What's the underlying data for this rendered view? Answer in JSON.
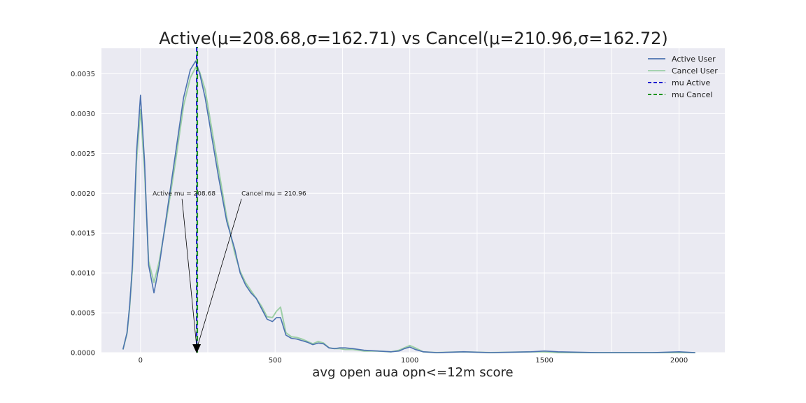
{
  "chart_data": {
    "type": "line",
    "title": "Active(μ=208.68,σ=162.71) vs Cancel(μ=210.96,σ=162.72)",
    "xlabel": "avg open aua opn<=12m score",
    "ylabel": "",
    "xlim": [
      -145,
      2170
    ],
    "ylim": [
      0,
      0.00382
    ],
    "xticks": [
      0,
      500,
      1000,
      1500,
      2000
    ],
    "yticks": [
      0.0,
      0.0005,
      0.001,
      0.0015,
      0.002,
      0.0025,
      0.003,
      0.0035
    ],
    "ytick_labels": [
      "0.0000",
      "0.0005",
      "0.0010",
      "0.0015",
      "0.0020",
      "0.0025",
      "0.0030",
      "0.0035"
    ],
    "grid": true,
    "legend_position": "top-right",
    "colors": {
      "background": "#eaeaf2",
      "grid": "#ffffff",
      "active": "#4c72b0",
      "cancel": "#9dcfa6",
      "mu_active": "#0000cc",
      "mu_cancel": "#008800"
    },
    "series": [
      {
        "name": "Active User",
        "x": [
          -65,
          -50,
          -40,
          -30,
          -15,
          0,
          15,
          30,
          50,
          70,
          100,
          130,
          160,
          185,
          205,
          220,
          240,
          260,
          290,
          320,
          350,
          370,
          390,
          410,
          430,
          450,
          470,
          490,
          505,
          520,
          540,
          560,
          580,
          600,
          620,
          640,
          660,
          680,
          700,
          720,
          740,
          760,
          790,
          830,
          880,
          930,
          960,
          980,
          1000,
          1020,
          1050,
          1100,
          1200,
          1300,
          1450,
          1500,
          1550,
          1700,
          1900,
          2000,
          2060
        ],
        "y": [
          4e-05,
          0.00025,
          0.0006,
          0.0011,
          0.0025,
          0.00323,
          0.0024,
          0.0011,
          0.00075,
          0.0011,
          0.0018,
          0.0025,
          0.0032,
          0.00355,
          0.00366,
          0.0035,
          0.0032,
          0.0028,
          0.0022,
          0.00165,
          0.0013,
          0.001,
          0.00085,
          0.00075,
          0.00068,
          0.00055,
          0.00042,
          0.00039,
          0.00044,
          0.00044,
          0.00022,
          0.00018,
          0.00017,
          0.00015,
          0.00013,
          0.0001,
          0.00012,
          0.00011,
          6e-05,
          5e-05,
          6e-05,
          6e-05,
          5e-05,
          3e-05,
          2e-05,
          1e-05,
          2e-05,
          5e-05,
          7e-05,
          4e-05,
          1e-05,
          0.0,
          1e-05,
          0.0,
          1e-05,
          2e-05,
          1e-05,
          0.0,
          0.0,
          1e-05,
          0.0
        ]
      },
      {
        "name": "Cancel User",
        "x": [
          -65,
          -50,
          -40,
          -30,
          -15,
          0,
          15,
          30,
          50,
          70,
          100,
          130,
          160,
          185,
          205,
          220,
          240,
          260,
          290,
          320,
          350,
          370,
          390,
          410,
          430,
          450,
          470,
          490,
          505,
          520,
          540,
          560,
          580,
          600,
          620,
          640,
          660,
          680,
          700,
          720,
          740,
          760,
          790,
          830,
          880,
          930,
          960,
          980,
          1000,
          1020,
          1050,
          1100,
          1200,
          1300,
          1450,
          1500,
          1550,
          1700,
          1900,
          2000,
          2060
        ],
        "y": [
          4e-05,
          0.00024,
          0.00058,
          0.00105,
          0.0024,
          0.00305,
          0.0023,
          0.00115,
          0.00088,
          0.00115,
          0.00175,
          0.0024,
          0.0031,
          0.00345,
          0.00358,
          0.00352,
          0.0033,
          0.0029,
          0.0023,
          0.0017,
          0.00125,
          0.00102,
          0.00088,
          0.00078,
          0.00068,
          0.00058,
          0.00045,
          0.00044,
          0.00052,
          0.00057,
          0.00025,
          0.0002,
          0.00019,
          0.00017,
          0.00014,
          0.00011,
          0.00014,
          0.00012,
          6e-05,
          5e-05,
          5e-05,
          4e-05,
          4e-05,
          2e-05,
          2e-05,
          1e-05,
          3e-05,
          6e-05,
          9e-05,
          6e-05,
          1e-05,
          0.0,
          1e-05,
          0.0,
          1e-05,
          1e-05,
          0.0,
          0.0,
          0.0,
          0.0,
          0.0
        ]
      }
    ],
    "mean_lines": [
      {
        "name": "mu Active",
        "x": 208.68
      },
      {
        "name": "mu Cancel",
        "x": 210.96
      }
    ],
    "annotations": [
      {
        "text": "Active mu = 208.68",
        "text_x": 45,
        "text_y": 0.002,
        "arrow_to_x": 208.68,
        "arrow_to_y": 0
      },
      {
        "text": "Cancel mu = 210.96",
        "text_x": 375,
        "text_y": 0.002,
        "arrow_to_x": 210.96,
        "arrow_to_y": 0
      }
    ]
  }
}
